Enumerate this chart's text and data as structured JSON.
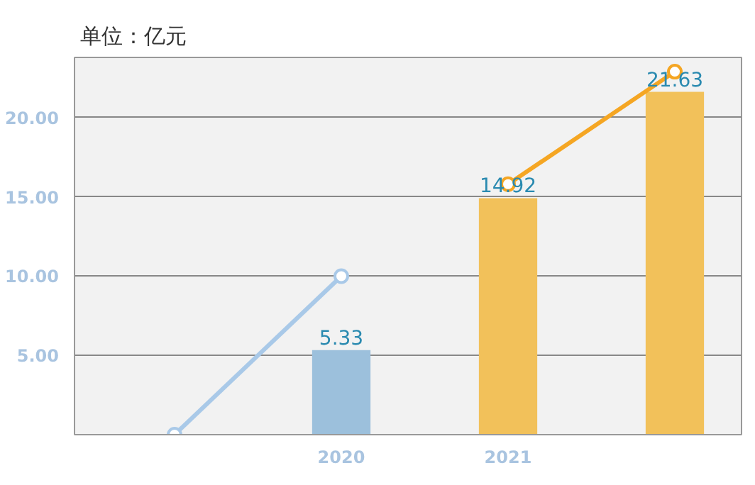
{
  "chart_data": {
    "type": "bar",
    "annotations": [
      "单位：亿元"
    ],
    "categories": [
      null,
      "2020",
      "2021",
      null
    ],
    "series": [
      {
        "colors": [
          null,
          "#9cc0dc",
          "#f2c15a",
          "#f2c15a"
        ],
        "values": [
          null,
          5.33,
          14.92,
          21.63
        ],
        "value_labels": [
          null,
          "5.33",
          "14.92",
          "21.63"
        ]
      },
      {
        "type": "line",
        "color": "#a9c9e8",
        "values": [
          0,
          10,
          null,
          null
        ]
      },
      {
        "type": "line",
        "color": "#f5a623",
        "values": [
          null,
          null,
          15.8,
          22.9
        ]
      }
    ],
    "ylim": [
      0,
      23.8
    ],
    "yticks": [
      {
        "value": 5,
        "label": "5.00"
      },
      {
        "value": 10,
        "label": "10.00"
      },
      {
        "value": 15,
        "label": "15.00"
      },
      {
        "value": 20,
        "label": "20.00"
      }
    ],
    "grid": "y",
    "marker": "circle"
  }
}
